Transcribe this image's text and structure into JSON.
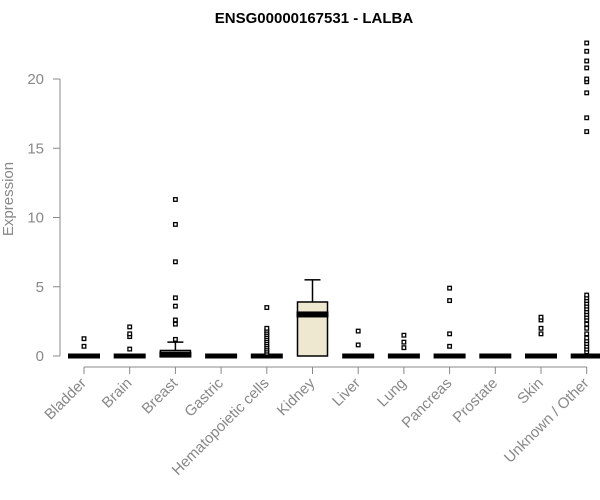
{
  "chart_data": {
    "type": "box",
    "title": "ENSG00000167531 - LALBA",
    "xlabel": "",
    "ylabel": "Expression",
    "ylim": [
      0,
      23
    ],
    "yticks": [
      0,
      5,
      10,
      15,
      20
    ],
    "categories": [
      "Bladder",
      "Brain",
      "Breast",
      "Gastric",
      "Hematopoietic cells",
      "Kidney",
      "Liver",
      "Lung",
      "Pancreas",
      "Prostate",
      "Skin",
      "Unknown / Other"
    ],
    "boxes": [
      {
        "category": "Bladder",
        "q1": 0,
        "median": 0,
        "q3": 0,
        "whisker_low": 0,
        "whisker_high": 0,
        "outliers": [
          0.7,
          1.25
        ]
      },
      {
        "category": "Brain",
        "q1": 0,
        "median": 0,
        "q3": 0,
        "whisker_low": 0,
        "whisker_high": 0,
        "outliers": [
          0.5,
          1.4,
          1.6,
          2.1
        ]
      },
      {
        "category": "Breast",
        "q1": 0,
        "median": 0.1,
        "q3": 0.4,
        "whisker_low": 0,
        "whisker_high": 1.0,
        "outliers": [
          1.2,
          2.3,
          2.6,
          3.6,
          4.2,
          6.8,
          9.5,
          11.3
        ]
      },
      {
        "category": "Gastric",
        "q1": 0,
        "median": 0,
        "q3": 0,
        "whisker_low": 0,
        "whisker_high": 0,
        "outliers": []
      },
      {
        "category": "Hematopoietic cells",
        "q1": 0,
        "median": 0,
        "q3": 0,
        "whisker_low": 0,
        "whisker_high": 0,
        "outliers": [
          0.2,
          0.35,
          0.5,
          0.65,
          0.8,
          0.95,
          1.1,
          1.25,
          1.4,
          1.55,
          1.7,
          1.85,
          2.0,
          3.5
        ]
      },
      {
        "category": "Kidney",
        "q1": 0,
        "median": 3.0,
        "q3": 3.9,
        "whisker_low": 0,
        "whisker_high": 5.5,
        "outliers": []
      },
      {
        "category": "Liver",
        "q1": 0,
        "median": 0,
        "q3": 0,
        "whisker_low": 0,
        "whisker_high": 0,
        "outliers": [
          0.8,
          1.8
        ]
      },
      {
        "category": "Lung",
        "q1": 0,
        "median": 0,
        "q3": 0,
        "whisker_low": 0,
        "whisker_high": 0,
        "outliers": [
          0.6,
          1.0,
          1.5
        ]
      },
      {
        "category": "Pancreas",
        "q1": 0,
        "median": 0,
        "q3": 0,
        "whisker_low": 0,
        "whisker_high": 0,
        "outliers": [
          0.7,
          1.6,
          4.0,
          4.9
        ]
      },
      {
        "category": "Prostate",
        "q1": 0,
        "median": 0,
        "q3": 0,
        "whisker_low": 0,
        "whisker_high": 0,
        "outliers": []
      },
      {
        "category": "Skin",
        "q1": 0,
        "median": 0,
        "q3": 0,
        "whisker_low": 0,
        "whisker_high": 0,
        "outliers": [
          1.6,
          2.0,
          2.6,
          2.8
        ]
      },
      {
        "category": "Unknown / Other",
        "q1": 0,
        "median": 0,
        "q3": 0,
        "whisker_low": 0,
        "whisker_high": 0,
        "outliers": [
          0.3,
          0.5,
          0.7,
          0.9,
          1.1,
          1.3,
          1.6,
          2.0,
          2.3,
          2.6,
          2.8,
          3.0,
          3.2,
          3.4,
          3.6,
          3.8,
          4.0,
          4.2,
          4.4,
          16.2,
          17.2,
          19.0,
          19.8,
          20.0,
          20.8,
          21.3,
          22.0,
          22.6
        ]
      }
    ],
    "highlight_category": "Kidney",
    "highlight_color": "#efe8d0",
    "box_color": "#ffffff",
    "line_color": "#000000",
    "axis_color": "#888888",
    "grid": false,
    "legend": "none"
  }
}
